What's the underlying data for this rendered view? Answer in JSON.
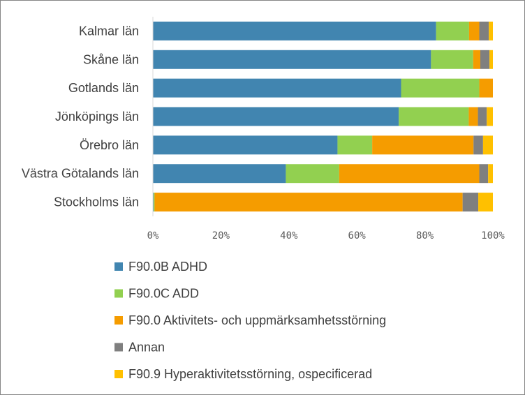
{
  "chart_data": {
    "type": "bar",
    "orientation": "horizontal",
    "stacked": "percent",
    "categories": [
      "Kalmar län",
      "Skåne län",
      "Gotlands län",
      "Jönköpings län",
      "Örebro län",
      "Västra Götalands län",
      "Stockholms län"
    ],
    "series": [
      {
        "name": "F90.0B ADHD",
        "color": "#4185b0",
        "values": [
          83.3,
          81.8,
          73.0,
          72.3,
          54.3,
          39.1,
          0.2
        ]
      },
      {
        "name": "F90.0C ADD",
        "color": "#92d050",
        "values": [
          9.7,
          12.4,
          23.0,
          20.6,
          10.2,
          15.7,
          0.3
        ]
      },
      {
        "name": "F90.0 Aktivitets- och uppmärksamhetsstörning",
        "color": "#f59c00",
        "values": [
          3.0,
          2.1,
          4.0,
          2.7,
          29.8,
          41.2,
          90.6
        ]
      },
      {
        "name": "Annan",
        "color": "#7f7f7f",
        "values": [
          2.8,
          2.7,
          0.0,
          2.6,
          2.8,
          2.6,
          4.6
        ]
      },
      {
        "name": "F90.9 Hyperaktivitetsstörning, ospecificerad",
        "color": "#ffc000",
        "values": [
          1.2,
          1.0,
          0.0,
          1.8,
          2.9,
          1.4,
          4.3
        ]
      }
    ],
    "x_ticks": [
      "0%",
      "20%",
      "40%",
      "60%",
      "80%",
      "100%"
    ],
    "xlim": [
      0,
      100
    ],
    "grid": false,
    "legend_position": "bottom"
  }
}
